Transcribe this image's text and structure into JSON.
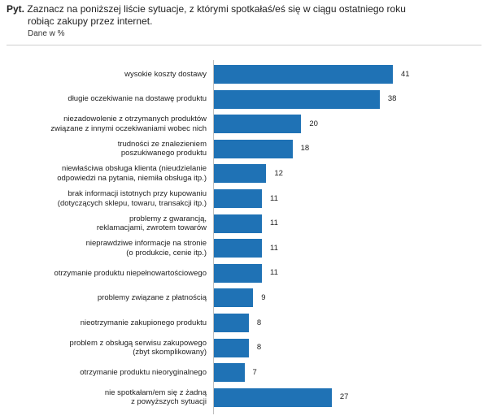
{
  "header": {
    "prefix": "Pyt.",
    "question_line1": "Zaznacz na poniższej liście sytuacje, z którymi spotkałaś/eś się w ciągu ostatniego roku",
    "question_line2": "robiąc zakupy przez internet.",
    "unit": "Dane w %"
  },
  "chart_data": {
    "type": "bar",
    "orientation": "horizontal",
    "categories": [
      [
        "wysokie koszty dostawy"
      ],
      [
        "długie oczekiwanie na dostawę produktu"
      ],
      [
        "niezadowolenie z otrzymanych produktów",
        "związane z innymi oczekiwaniami wobec nich"
      ],
      [
        "trudności ze znalezieniem",
        "poszukiwanego produktu"
      ],
      [
        "niewłaściwa obsługa klienta (nieudzielanie",
        "odpowiedzi na pytania, niemiła obsługa itp.)"
      ],
      [
        "brak informacji istotnych przy kupowaniu",
        "(dotyczących sklepu, towaru, transakcji itp.)"
      ],
      [
        "problemy z gwarancją,",
        "reklamacjami, zwrotem towarów"
      ],
      [
        "nieprawdziwe informacje na stronie",
        "(o produkcie, cenie itp.)"
      ],
      [
        "otrzymanie produktu niepełnowartościowego"
      ],
      [
        "problemy związane z płatnością"
      ],
      [
        "nieotrzymanie zakupionego produktu"
      ],
      [
        "problem z obsługą serwisu zakupowego",
        "(zbyt skomplikowany)"
      ],
      [
        "otrzymanie produktu nieoryginalnego"
      ],
      [
        "nie spotkałam/em się z żadną",
        "z powyższych sytuacji"
      ]
    ],
    "values": [
      41,
      38,
      20,
      18,
      12,
      11,
      11,
      11,
      11,
      9,
      8,
      8,
      7,
      27
    ],
    "value_labels": [
      "41",
      "38",
      "20",
      "18",
      "12",
      "11",
      "11",
      "11",
      "11",
      "9",
      "8",
      "8",
      "7",
      "27"
    ],
    "xlim": [
      0,
      45
    ],
    "grid": false,
    "bar_color": "#1f72b5"
  }
}
